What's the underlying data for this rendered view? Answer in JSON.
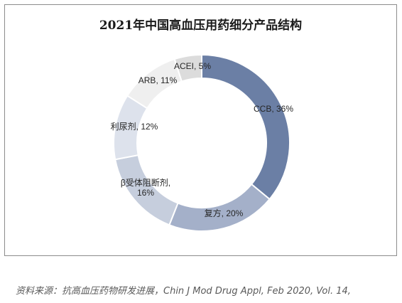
{
  "chart_data": {
    "type": "pie",
    "title": "2021年中国高血压用药细分产品结构",
    "slices": [
      {
        "name": "CCB",
        "value": 36,
        "label": "CCB, 36%",
        "color": "#6b7fa5"
      },
      {
        "name": "复方",
        "value": 20,
        "label": "复方, 20%",
        "color": "#a4b0c9"
      },
      {
        "name": "β受体阻断剂",
        "value": 16,
        "label_lines": [
          "β受体阻断剂,",
          "16%"
        ],
        "color": "#c6cedd"
      },
      {
        "name": "利尿剂",
        "value": 12,
        "label": "利尿剂, 12%",
        "color": "#dde2ec"
      },
      {
        "name": "ARB",
        "value": 11,
        "label": "ARB, 11%",
        "color": "#efefef"
      },
      {
        "name": "ACEI",
        "value": 5,
        "label": "ACEI, 5%",
        "color": "#dcdcdc"
      }
    ]
  },
  "source_note": "资料来源：抗高血压药物研发进展，Chin J Mod Drug Appl, Feb 2020, Vol. 14,"
}
